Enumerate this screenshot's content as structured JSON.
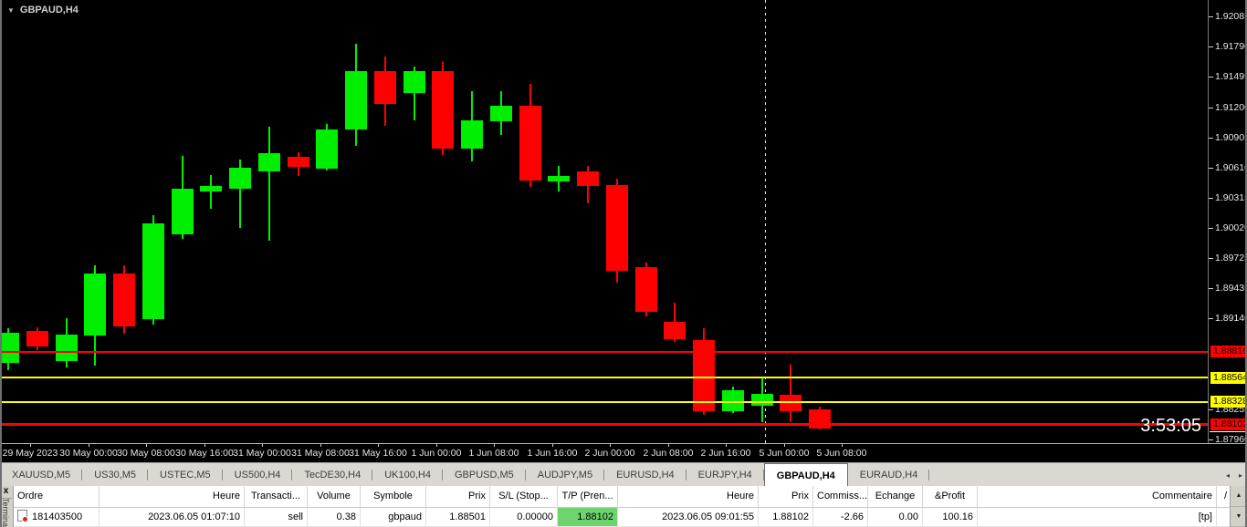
{
  "chart": {
    "symbol_label": "GBPAUD,H4",
    "clock": "3:53:05",
    "colors": {
      "up": "#00ee00",
      "down": "#ff0000",
      "background": "#000000",
      "axis_text": "#e6e6e6",
      "level_red": "#ff0000",
      "level_yellow": "#ffff00",
      "bid_line": "#ffffff",
      "tp_cell_green": "#6ed46e"
    }
  },
  "chart_data": {
    "type": "candlestick",
    "title": "GBPAUD,H4",
    "symbol": "GBPAUD",
    "timeframe": "H4",
    "ylim": [
      1.87924,
      1.92245
    ],
    "grid": false,
    "y_ticks": [
      "1.92085",
      "1.91790",
      "1.91495",
      "1.91200",
      "1.90905",
      "1.90610",
      "1.90315",
      "1.90020",
      "1.89725",
      "1.89435",
      "1.89140",
      "1.88255",
      "1.87960"
    ],
    "x_ticks": [
      "29 May 2023",
      "30 May 00:00",
      "30 May 08:00",
      "30 May 16:00",
      "31 May 00:00",
      "31 May 08:00",
      "31 May 16:00",
      "1 Jun 00:00",
      "1 Jun 08:00",
      "1 Jun 16:00",
      "2 Jun 00:00",
      "2 Jun 08:00",
      "2 Jun 16:00",
      "5 Jun 00:00",
      "5 Jun 08:00"
    ],
    "levels": [
      {
        "price": 1.88816,
        "label": "1.88816",
        "color": "#ff0000",
        "thickness": 2
      },
      {
        "price": 1.88564,
        "label": "1.88564",
        "color": "#ffff00",
        "thickness": 2
      },
      {
        "price": 1.88328,
        "label": "1.88328",
        "color": "#ffff00",
        "thickness": 2
      },
      {
        "price": 1.88102,
        "label": "1.88102",
        "color": "#ff0000",
        "thickness": 3
      },
      {
        "price": 1.8804,
        "label": null,
        "color": "#ffffff",
        "thickness": 1,
        "axis_only": true
      }
    ],
    "week_separator_after": "2 Jun 20:00",
    "candles": [
      {
        "t": "29 May 12:00",
        "o": 1.88707,
        "h": 1.89045,
        "l": 1.88636,
        "c": 1.89
      },
      {
        "t": "29 May 16:00",
        "o": 1.89018,
        "h": 1.89054,
        "l": 1.88831,
        "c": 1.88867
      },
      {
        "t": "29 May 20:00",
        "o": 1.88725,
        "h": 1.89143,
        "l": 1.88663,
        "c": 1.88982
      },
      {
        "t": "30 May 00:00",
        "o": 1.88973,
        "h": 1.89658,
        "l": 1.8868,
        "c": 1.89578
      },
      {
        "t": "30 May 04:00",
        "o": 1.89578,
        "h": 1.89658,
        "l": 1.88991,
        "c": 1.89062
      },
      {
        "t": "30 May 08:00",
        "o": 1.89134,
        "h": 1.90147,
        "l": 1.8908,
        "c": 1.90067
      },
      {
        "t": "30 May 12:00",
        "o": 1.8996,
        "h": 1.90725,
        "l": 1.89916,
        "c": 1.90405
      },
      {
        "t": "30 May 16:00",
        "o": 1.90378,
        "h": 1.90538,
        "l": 1.90209,
        "c": 1.90431
      },
      {
        "t": "30 May 20:00",
        "o": 1.90405,
        "h": 1.90689,
        "l": 1.90023,
        "c": 1.90609
      },
      {
        "t": "31 May 00:00",
        "o": 1.90574,
        "h": 1.91009,
        "l": 1.89898,
        "c": 1.90751
      },
      {
        "t": "31 May 04:00",
        "o": 1.90716,
        "h": 1.9076,
        "l": 1.90529,
        "c": 1.90618
      },
      {
        "t": "31 May 08:00",
        "o": 1.906,
        "h": 1.91036,
        "l": 1.90582,
        "c": 1.90983
      },
      {
        "t": "31 May 12:00",
        "o": 1.90983,
        "h": 1.91818,
        "l": 1.90823,
        "c": 1.91552
      },
      {
        "t": "31 May 16:00",
        "o": 1.91552,
        "h": 1.91694,
        "l": 1.91018,
        "c": 1.91232
      },
      {
        "t": "31 May 20:00",
        "o": 1.91338,
        "h": 1.91596,
        "l": 1.91071,
        "c": 1.91552
      },
      {
        "t": "1 Jun 00:00",
        "o": 1.91552,
        "h": 1.91641,
        "l": 1.90734,
        "c": 1.90796
      },
      {
        "t": "1 Jun 04:00",
        "o": 1.90796,
        "h": 1.91356,
        "l": 1.90671,
        "c": 1.91071
      },
      {
        "t": "1 Jun 08:00",
        "o": 1.91062,
        "h": 1.91356,
        "l": 1.90929,
        "c": 1.91214
      },
      {
        "t": "1 Jun 12:00",
        "o": 1.91214,
        "h": 1.91427,
        "l": 1.90423,
        "c": 1.90485
      },
      {
        "t": "1 Jun 16:00",
        "o": 1.90476,
        "h": 1.90627,
        "l": 1.90378,
        "c": 1.90529
      },
      {
        "t": "1 Jun 20:00",
        "o": 1.90574,
        "h": 1.90627,
        "l": 1.90262,
        "c": 1.90431
      },
      {
        "t": "2 Jun 00:00",
        "o": 1.9044,
        "h": 1.90502,
        "l": 1.89489,
        "c": 1.89605
      },
      {
        "t": "2 Jun 04:00",
        "o": 1.8964,
        "h": 1.89685,
        "l": 1.8916,
        "c": 1.89205
      },
      {
        "t": "2 Jun 08:00",
        "o": 1.89107,
        "h": 1.89294,
        "l": 1.88911,
        "c": 1.88938
      },
      {
        "t": "2 Jun 12:00",
        "o": 1.88929,
        "h": 1.89045,
        "l": 1.882,
        "c": 1.88236
      },
      {
        "t": "2 Jun 16:00",
        "o": 1.88236,
        "h": 1.88476,
        "l": 1.88218,
        "c": 1.8844
      },
      {
        "t": "2 Jun 20:00",
        "o": 1.88289,
        "h": 1.88556,
        "l": 1.88129,
        "c": 1.88405
      },
      {
        "t": "5 Jun 00:00",
        "o": 1.88396,
        "h": 1.88689,
        "l": 1.88129,
        "c": 1.88236
      },
      {
        "t": "5 Jun 04:00",
        "o": 1.88253,
        "h": 1.8828,
        "l": 1.88058,
        "c": 1.88067
      }
    ]
  },
  "tabbar": {
    "tabs": [
      {
        "label": "XAUUSD,M5",
        "active": false
      },
      {
        "label": "US30,M5",
        "active": false
      },
      {
        "label": "USTEC,M5",
        "active": false
      },
      {
        "label": "US500,H4",
        "active": false
      },
      {
        "label": "TecDE30,H4",
        "active": false
      },
      {
        "label": "UK100,H4",
        "active": false
      },
      {
        "label": "GBPUSD,M5",
        "active": false
      },
      {
        "label": "AUDJPY,M5",
        "active": false
      },
      {
        "label": "EURUSD,H4",
        "active": false
      },
      {
        "label": "EURJPY,H4",
        "active": false
      },
      {
        "label": "GBPAUD,H4",
        "active": true
      },
      {
        "label": "EURAUD,H4",
        "active": false
      }
    ],
    "left_arrow": "◂",
    "right_arrow": "▸"
  },
  "terminal": {
    "vertical_label": "Terminal",
    "close_label": "x",
    "scroll_up": "▲",
    "scroll_down": "▼",
    "columns": [
      "Ordre",
      "Heure",
      "Transacti...",
      "Volume",
      "Symbole",
      "Prix",
      "S/L (Stop...",
      "T/P (Pren...",
      "Heure",
      "Prix",
      "Commiss...",
      "Echange",
      "&Profit",
      "Commentaire",
      "/"
    ],
    "row": {
      "ordre": "181403500",
      "heure_open": "2023.06.05 01:07:10",
      "transaction": "sell",
      "volume": "0.38",
      "symbole": "gbpaud",
      "prix_open": "1.88501",
      "sl": "0.00000",
      "tp": "1.88102",
      "heure_close": "2023.06.05 09:01:55",
      "prix_close": "1.88102",
      "commission": "-2.66",
      "echange": "0.00",
      "profit": "100.16",
      "commentaire": "[tp]"
    }
  }
}
